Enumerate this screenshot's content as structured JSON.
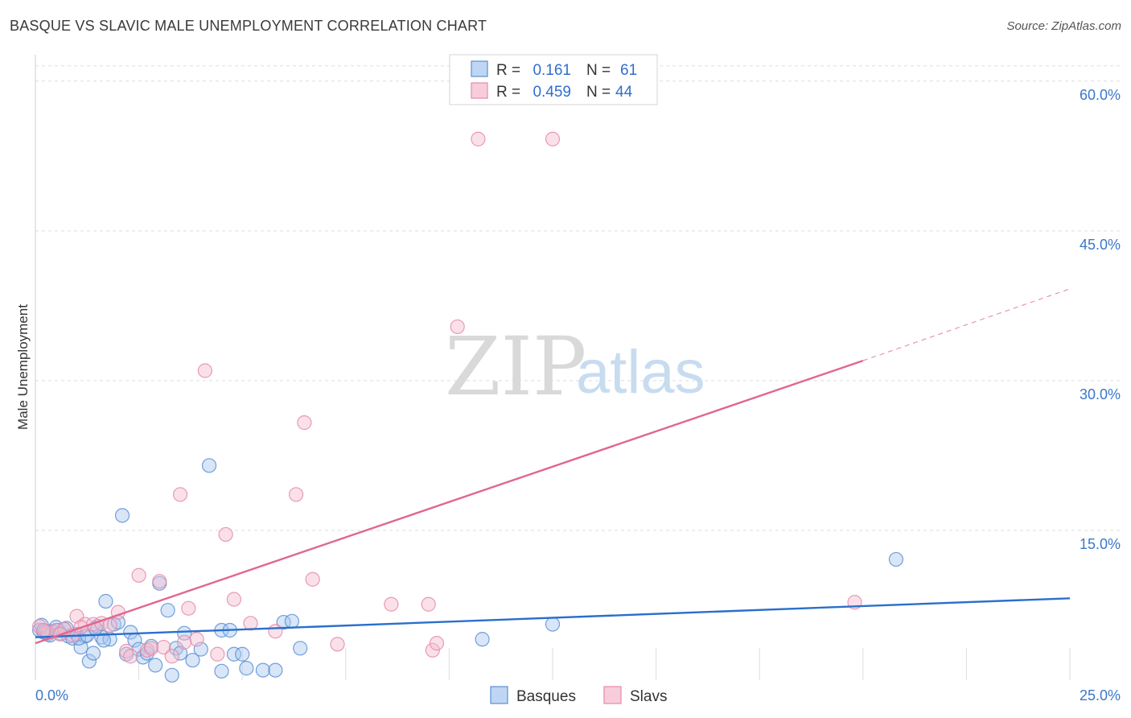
{
  "title": "BASQUE VS SLAVIC MALE UNEMPLOYMENT CORRELATION CHART",
  "source": "Source: ZipAtlas.com",
  "watermark": {
    "part1": "ZIP",
    "part2": "atlas"
  },
  "chart_data": {
    "type": "scatter",
    "ylabel": "Male Unemployment",
    "xlim": [
      0,
      25
    ],
    "ylim": [
      0,
      62
    ],
    "y_ticks": [
      {
        "value": 15,
        "label": "15.0%"
      },
      {
        "value": 30,
        "label": "30.0%"
      },
      {
        "value": 45,
        "label": "45.0%"
      },
      {
        "value": 60,
        "label": "60.0%"
      }
    ],
    "x_tick_labels": [
      {
        "value": 0,
        "label": "0.0%"
      },
      {
        "value": 25,
        "label": "25.0%"
      }
    ],
    "x_grid": [
      2.5,
      5,
      7.5,
      10,
      12.5,
      15,
      17.5,
      20,
      22.5,
      25
    ],
    "legend": [
      {
        "name": "Basques",
        "r_label": "R =",
        "r_value": "0.161",
        "n_label": "N =",
        "n_value": "61",
        "fill": "#a8c8f0",
        "stroke": "#5b8fd6",
        "line": "#2a6fcc"
      },
      {
        "name": "Slavs",
        "r_label": "R =",
        "r_value": "0.459",
        "n_label": "N =",
        "n_value": "44",
        "fill": "#f5bccf",
        "stroke": "#e58aa8",
        "line": "#e0668f"
      }
    ],
    "series": [
      {
        "name": "Basques",
        "trend": {
          "x0": 0,
          "y0": 4.3,
          "x1": 25,
          "y1": 8.2
        },
        "points": [
          [
            0.1,
            5.0
          ],
          [
            0.2,
            4.8
          ],
          [
            0.3,
            4.6
          ],
          [
            0.4,
            4.9
          ],
          [
            0.5,
            5.3
          ],
          [
            0.6,
            4.7
          ],
          [
            0.7,
            5.1
          ],
          [
            0.8,
            4.4
          ],
          [
            0.9,
            4.2
          ],
          [
            1.0,
            4.6
          ],
          [
            1.1,
            3.3
          ],
          [
            1.2,
            4.4
          ],
          [
            1.3,
            1.9
          ],
          [
            1.4,
            2.7
          ],
          [
            1.5,
            5.4
          ],
          [
            1.6,
            4.3
          ],
          [
            1.7,
            7.9
          ],
          [
            1.8,
            4.1
          ],
          [
            1.9,
            5.6
          ],
          [
            2.0,
            5.8
          ],
          [
            2.1,
            16.5
          ],
          [
            2.2,
            2.6
          ],
          [
            2.3,
            4.8
          ],
          [
            2.4,
            4.0
          ],
          [
            2.5,
            3.1
          ],
          [
            2.6,
            2.3
          ],
          [
            2.7,
            2.7
          ],
          [
            2.8,
            3.4
          ],
          [
            2.9,
            1.5
          ],
          [
            3.0,
            9.7
          ],
          [
            3.2,
            7.0
          ],
          [
            3.3,
            0.5
          ],
          [
            3.4,
            3.2
          ],
          [
            3.5,
            2.7
          ],
          [
            3.6,
            4.7
          ],
          [
            3.8,
            2.0
          ],
          [
            4.0,
            3.1
          ],
          [
            4.2,
            21.5
          ],
          [
            4.5,
            5.0
          ],
          [
            4.5,
            0.9
          ],
          [
            4.7,
            5.0
          ],
          [
            4.8,
            2.6
          ],
          [
            5.0,
            2.6
          ],
          [
            5.1,
            1.2
          ],
          [
            5.5,
            1.0
          ],
          [
            5.8,
            1.0
          ],
          [
            6.0,
            5.8
          ],
          [
            6.2,
            5.9
          ],
          [
            6.4,
            3.2
          ],
          [
            10.8,
            4.1
          ],
          [
            12.5,
            5.6
          ],
          [
            20.8,
            12.1
          ],
          [
            0.15,
            5.5
          ],
          [
            0.35,
            4.5
          ],
          [
            0.55,
            5.0
          ],
          [
            0.75,
            5.2
          ],
          [
            1.05,
            4.2
          ],
          [
            1.25,
            4.5
          ],
          [
            1.45,
            5.2
          ],
          [
            1.65,
            4.0
          ],
          [
            0.25,
            4.9
          ]
        ]
      },
      {
        "name": "Slavs",
        "trend": {
          "x0": 0,
          "y0": 3.7,
          "x1": 20,
          "y1": 32.0,
          "dash_x1": 25,
          "dash_y1": 39.2
        },
        "points": [
          [
            0.1,
            5.4
          ],
          [
            0.3,
            4.8
          ],
          [
            0.5,
            5.0
          ],
          [
            0.7,
            5.1
          ],
          [
            0.9,
            4.5
          ],
          [
            1.0,
            6.4
          ],
          [
            1.2,
            5.6
          ],
          [
            1.4,
            5.6
          ],
          [
            1.6,
            5.7
          ],
          [
            1.8,
            5.5
          ],
          [
            2.0,
            6.8
          ],
          [
            2.2,
            2.9
          ],
          [
            2.3,
            2.4
          ],
          [
            2.5,
            10.5
          ],
          [
            2.7,
            3.0
          ],
          [
            2.8,
            3.2
          ],
          [
            3.0,
            9.9
          ],
          [
            3.1,
            3.3
          ],
          [
            3.3,
            2.4
          ],
          [
            3.5,
            18.6
          ],
          [
            3.7,
            7.2
          ],
          [
            3.9,
            4.1
          ],
          [
            4.1,
            31.0
          ],
          [
            4.4,
            2.6
          ],
          [
            4.6,
            14.6
          ],
          [
            4.8,
            8.1
          ],
          [
            5.2,
            5.7
          ],
          [
            5.8,
            4.9
          ],
          [
            6.3,
            18.6
          ],
          [
            6.5,
            25.8
          ],
          [
            6.7,
            10.1
          ],
          [
            7.3,
            3.6
          ],
          [
            8.6,
            7.6
          ],
          [
            9.5,
            7.6
          ],
          [
            9.6,
            3.0
          ],
          [
            9.7,
            3.7
          ],
          [
            10.2,
            35.4
          ],
          [
            10.7,
            54.2
          ],
          [
            12.5,
            54.2
          ],
          [
            19.8,
            7.8
          ],
          [
            0.2,
            5.0
          ],
          [
            0.6,
            4.6
          ],
          [
            1.1,
            5.3
          ],
          [
            3.6,
            3.8
          ]
        ]
      }
    ]
  }
}
